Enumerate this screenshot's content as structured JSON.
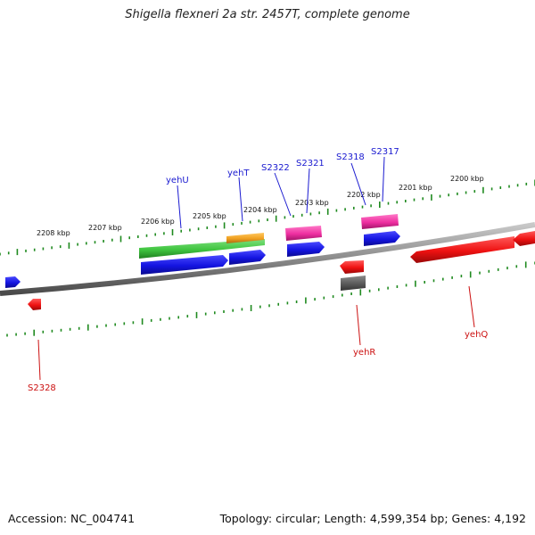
{
  "title": "Shigella flexneri 2a str. 2457T, complete genome",
  "footer": {
    "accession": "Accession: NC_004741",
    "summary": "Topology: circular; Length: 4,599,354 bp; Genes: 4,192"
  },
  "colors": {
    "backbone": "#8a8a8a",
    "scale": "#1f8a1f",
    "blue": "#1414e0",
    "red": "#ee1111",
    "green": "#3fc43f",
    "orange": "#f0a020",
    "pink": "#ee2ea0",
    "gray": "#5a5a5a",
    "label_blue": "#1a1ad0",
    "label_red": "#cc1111"
  },
  "ticks": [
    {
      "label": "2208 kbp"
    },
    {
      "label": "2207 kbp"
    },
    {
      "label": "2206 kbp"
    },
    {
      "label": "2205 kbp"
    },
    {
      "label": "2204 kbp"
    },
    {
      "label": "2203 kbp"
    },
    {
      "label": "2202 kbp"
    },
    {
      "label": "2201 kbp"
    },
    {
      "label": "2200 kbp"
    }
  ],
  "gene_labels": [
    {
      "name": "yehU",
      "color": "blue"
    },
    {
      "name": "yehT",
      "color": "blue"
    },
    {
      "name": "S2322",
      "color": "blue"
    },
    {
      "name": "S2321",
      "color": "blue"
    },
    {
      "name": "S2318",
      "color": "blue"
    },
    {
      "name": "S2317",
      "color": "blue"
    },
    {
      "name": "S2328",
      "color": "red"
    },
    {
      "name": "yehR",
      "color": "red"
    },
    {
      "name": "yehQ",
      "color": "red"
    }
  ]
}
